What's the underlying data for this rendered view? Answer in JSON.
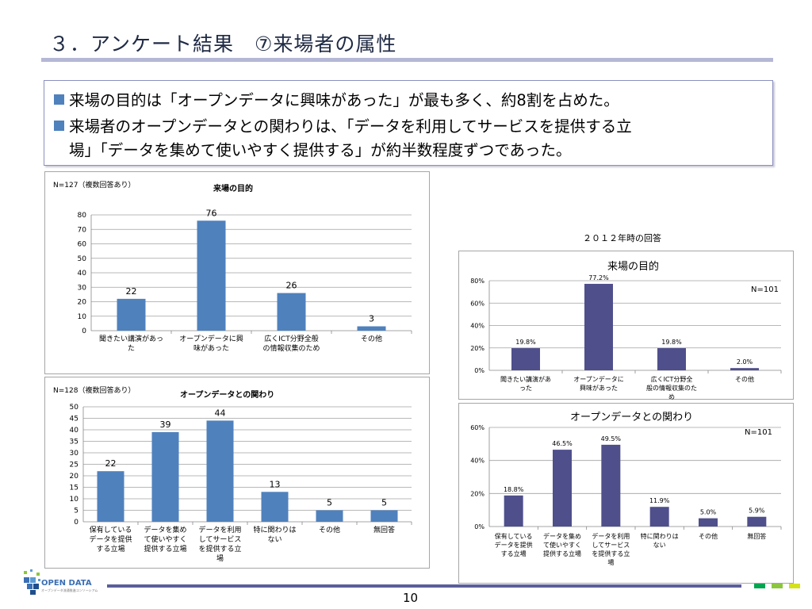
{
  "page": {
    "title": "３．アンケート結果　⑦来場者の属性",
    "page_number": "10",
    "logo_text": "OPEN DATA",
    "logo_subtext": "オープンデータ流通推進コンソーシアム"
  },
  "summary": {
    "bullet1": "来場の目的は「オープンデータに興味があった」が最も多く、約8割を占めた。",
    "bullet2_line1": "来場者のオープンデータとの関わりは、「データを利用してサービスを提供する立",
    "bullet2_line2": "場」「データを集めて使いやすく提供する」が約半数程度ずつであった。"
  },
  "colors": {
    "bar_2013": "#4f81bd",
    "bar_2012": "#4f4f8c",
    "title_rule": "#b5b7d6",
    "footer_bar": "#5b5e99",
    "footer_sq1": "#00a650",
    "footer_sq2": "#8cc63f",
    "footer_sq3": "#d4e21c"
  },
  "right_header": "２０１２年時の回答",
  "chart_data": [
    {
      "type": "bar",
      "note": "N=127（複数回答あり）",
      "title": "来場の目的",
      "categories": [
        "聞きたい講演があった",
        "オープンデータに興味があった",
        "広くICT分野全般の情報収集のため",
        "その他"
      ],
      "values": [
        22,
        76,
        26,
        3
      ],
      "ylim": [
        0,
        80
      ],
      "yticks": [
        0,
        10,
        20,
        30,
        40,
        50,
        60,
        70,
        80
      ],
      "grid": true
    },
    {
      "type": "bar",
      "note": "N=128（複数回答あり）",
      "title": "オープンデータとの関わり",
      "categories": [
        "保有しているデータを提供する立場",
        "データを集めて使いやすく提供する立場",
        "データを利用してサービスを提供する立場",
        "特に関わりはない",
        "その他",
        "無回答"
      ],
      "values": [
        22,
        39,
        44,
        13,
        5,
        5
      ],
      "ylim": [
        0,
        50
      ],
      "yticks": [
        0,
        5,
        10,
        15,
        20,
        25,
        30,
        35,
        40,
        45,
        50
      ],
      "grid": true
    },
    {
      "type": "bar",
      "title": "来場の目的",
      "n_label": "N=101",
      "categories": [
        "聞きたい講演があった",
        "オープンデータに興味があった",
        "広くICT分野全般の情報収集のため",
        "その他"
      ],
      "values": [
        19.8,
        77.2,
        19.8,
        2.0
      ],
      "value_labels": [
        "19.8%",
        "77.2%",
        "19.8%",
        "2.0%"
      ],
      "ylim": [
        0,
        80
      ],
      "yticks": [
        "0%",
        "20%",
        "40%",
        "60%",
        "80%"
      ],
      "grid": true
    },
    {
      "type": "bar",
      "title": "オープンデータとの関わり",
      "n_label": "N=101",
      "categories": [
        "保有しているデータを提供する立場",
        "データを集めて使いやすく提供する立場",
        "データを利用してサービスを提供する立場",
        "特に関わりはない",
        "その他",
        "無回答"
      ],
      "values": [
        18.8,
        46.5,
        49.5,
        11.9,
        5.0,
        5.9
      ],
      "value_labels": [
        "18.8%",
        "46.5%",
        "49.5%",
        "11.9%",
        "5.0%",
        "5.9%"
      ],
      "ylim": [
        0,
        60
      ],
      "yticks": [
        "0%",
        "20%",
        "40%",
        "60%"
      ],
      "grid": true
    }
  ]
}
